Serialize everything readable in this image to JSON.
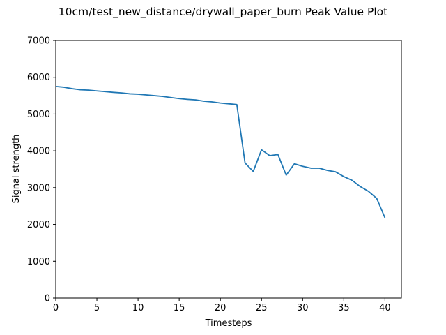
{
  "chart_data": {
    "type": "line",
    "title": "10cm/test_new_distance/drywall_paper_burn Peak Value Plot",
    "xlabel": "Timesteps",
    "ylabel": "Signal strength",
    "xlim": [
      0,
      42
    ],
    "ylim": [
      0,
      7000
    ],
    "x_ticks": [
      0,
      5,
      10,
      15,
      20,
      25,
      30,
      35,
      40
    ],
    "y_ticks": [
      0,
      1000,
      2000,
      3000,
      4000,
      5000,
      6000,
      7000
    ],
    "grid": false,
    "line_color": "#1f77b4",
    "series": [
      {
        "x": [
          0,
          1,
          2,
          3,
          4,
          5,
          6,
          7,
          8,
          9,
          10,
          11,
          12,
          13,
          14,
          15,
          16,
          17,
          18,
          19,
          20,
          21,
          22,
          23,
          24,
          25,
          26,
          27,
          28,
          29,
          30,
          31,
          32,
          33,
          34,
          35,
          36,
          37,
          38,
          39,
          40
        ],
        "values": [
          5750,
          5730,
          5690,
          5660,
          5650,
          5630,
          5610,
          5590,
          5575,
          5550,
          5540,
          5520,
          5500,
          5480,
          5450,
          5420,
          5400,
          5385,
          5350,
          5330,
          5300,
          5280,
          5260,
          3670,
          3440,
          4030,
          3870,
          3900,
          3340,
          3650,
          3580,
          3530,
          3530,
          3470,
          3430,
          3300,
          3200,
          3030,
          2900,
          2710,
          2180
        ]
      }
    ]
  }
}
